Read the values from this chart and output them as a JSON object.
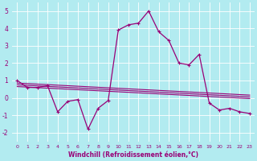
{
  "xlabel": "Windchill (Refroidissement éolien,°C)",
  "bg_color": "#b2ebf0",
  "grid_color": "#ffffff",
  "line_color": "#990077",
  "xlim": [
    -0.5,
    23.5
  ],
  "ylim": [
    -2.5,
    5.5
  ],
  "yticks": [
    -2,
    -1,
    0,
    1,
    2,
    3,
    4,
    5
  ],
  "xticks": [
    0,
    1,
    2,
    3,
    4,
    5,
    6,
    7,
    8,
    9,
    10,
    11,
    12,
    13,
    14,
    15,
    16,
    17,
    18,
    19,
    20,
    21,
    22,
    23
  ],
  "main_series": [
    1.0,
    0.6,
    0.6,
    0.7,
    -0.8,
    -0.2,
    -0.1,
    -1.8,
    -0.6,
    -0.15,
    3.9,
    4.2,
    4.3,
    5.0,
    3.8,
    3.3,
    2.0,
    1.9,
    2.5,
    -0.3,
    -0.7,
    -0.6,
    -0.8,
    -0.9
  ],
  "trend1": [
    0.85,
    0.82,
    0.79,
    0.76,
    0.73,
    0.7,
    0.67,
    0.64,
    0.61,
    0.58,
    0.55,
    0.52,
    0.49,
    0.46,
    0.43,
    0.4,
    0.37,
    0.34,
    0.31,
    0.28,
    0.25,
    0.22,
    0.19,
    0.16
  ],
  "trend2": [
    0.75,
    0.72,
    0.69,
    0.66,
    0.63,
    0.6,
    0.57,
    0.54,
    0.51,
    0.48,
    0.45,
    0.42,
    0.39,
    0.36,
    0.33,
    0.3,
    0.27,
    0.24,
    0.21,
    0.18,
    0.15,
    0.12,
    0.09,
    0.06
  ],
  "trend3": [
    0.65,
    0.62,
    0.59,
    0.56,
    0.53,
    0.5,
    0.47,
    0.44,
    0.41,
    0.38,
    0.35,
    0.32,
    0.29,
    0.26,
    0.23,
    0.2,
    0.17,
    0.14,
    0.11,
    0.08,
    0.05,
    0.02,
    -0.01,
    -0.04
  ]
}
